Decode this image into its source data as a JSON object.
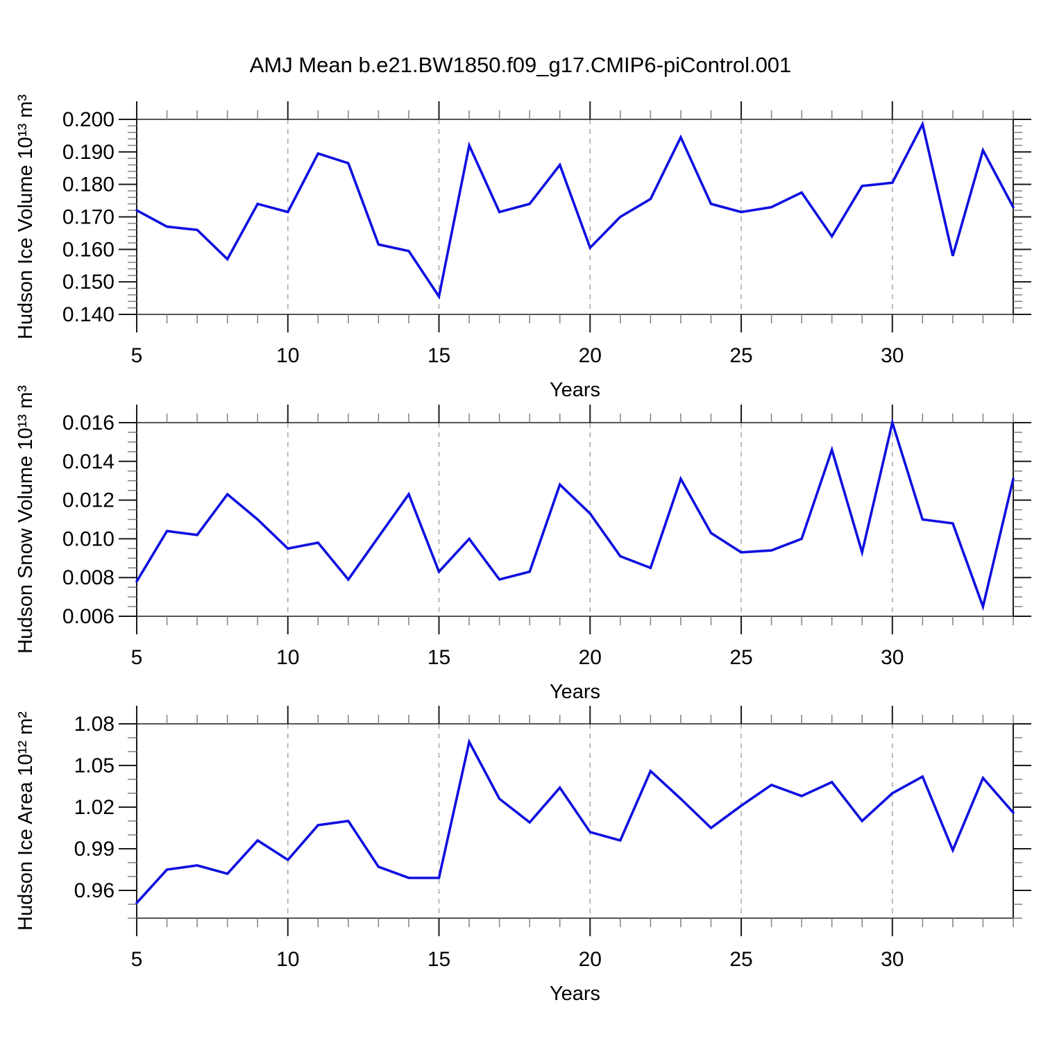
{
  "page_title": "AMJ Mean b.e21.BW1850.f09_g17.CMIP6-piControl.001",
  "colors": {
    "line": "#0f0fe0",
    "axis_dark": "#1a1a1a",
    "frame_gray": "#555555",
    "tick_minor": "#808080",
    "grid": "#999999",
    "text": "#000000"
  },
  "chart_data": [
    {
      "type": "line",
      "ylabel": "Hudson Ice Volume 10¹³ m³",
      "xlabel": "Years",
      "xlim": [
        5,
        34
      ],
      "ylim": [
        0.14,
        0.2
      ],
      "x": [
        5,
        6,
        7,
        8,
        9,
        10,
        11,
        12,
        13,
        14,
        15,
        16,
        17,
        18,
        19,
        20,
        21,
        22,
        23,
        24,
        25,
        26,
        27,
        28,
        29,
        30,
        31,
        32,
        33,
        34
      ],
      "values": [
        0.172,
        0.167,
        0.166,
        0.157,
        0.174,
        0.1715,
        0.1895,
        0.1865,
        0.1615,
        0.1595,
        0.1455,
        0.192,
        0.1715,
        0.174,
        0.186,
        0.1605,
        0.17,
        0.1755,
        0.1945,
        0.174,
        0.1715,
        0.173,
        0.1775,
        0.164,
        0.1795,
        0.1805,
        0.1985,
        0.158,
        0.1905,
        0.173
      ],
      "x_major_ticks": [
        5,
        10,
        15,
        20,
        25,
        30
      ],
      "x_tick_labels": [
        "5",
        "10",
        "15",
        "20",
        "25",
        "30"
      ],
      "x_minor_step": 1,
      "y_major_ticks": [
        0.14,
        0.15,
        0.16,
        0.17,
        0.18,
        0.19,
        0.2
      ],
      "y_tick_labels": [
        "0.140",
        "0.150",
        "0.160",
        "0.170",
        "0.180",
        "0.190",
        "0.200"
      ],
      "y_minor_step": 0.002,
      "grid_x": [
        10,
        15,
        20,
        25,
        30
      ],
      "grid_style": "vertical-dashed",
      "legend": null
    },
    {
      "type": "line",
      "ylabel": "Hudson Snow Volume 10¹³ m³",
      "xlabel": "Years",
      "xlim": [
        5,
        34
      ],
      "ylim": [
        0.006,
        0.016
      ],
      "x": [
        5,
        6,
        7,
        8,
        9,
        10,
        11,
        12,
        13,
        14,
        15,
        16,
        17,
        18,
        19,
        20,
        21,
        22,
        23,
        24,
        25,
        26,
        27,
        28,
        29,
        30,
        31,
        32,
        33,
        34
      ],
      "values": [
        0.0078,
        0.0104,
        0.0102,
        0.0123,
        0.011,
        0.0095,
        0.0098,
        0.0079,
        0.0101,
        0.0123,
        0.0083,
        0.01,
        0.0079,
        0.0083,
        0.0128,
        0.0113,
        0.0091,
        0.0085,
        0.0131,
        0.0103,
        0.0093,
        0.0094,
        0.01,
        0.0146,
        0.0093,
        0.016,
        0.011,
        0.0108,
        0.0065,
        0.0131
      ],
      "x_major_ticks": [
        5,
        10,
        15,
        20,
        25,
        30
      ],
      "x_tick_labels": [
        "5",
        "10",
        "15",
        "20",
        "25",
        "30"
      ],
      "x_minor_step": 1,
      "y_major_ticks": [
        0.006,
        0.008,
        0.01,
        0.012,
        0.014,
        0.016
      ],
      "y_tick_labels": [
        "0.006",
        "0.008",
        "0.010",
        "0.012",
        "0.014",
        "0.016"
      ],
      "y_minor_step": 0.0005,
      "grid_x": [
        10,
        15,
        20,
        25,
        30
      ],
      "grid_style": "vertical-dashed",
      "legend": null
    },
    {
      "type": "line",
      "ylabel": "Hudson Ice Area 10¹² m²",
      "xlabel": "Years",
      "xlim": [
        5,
        34
      ],
      "ylim": [
        0.94,
        1.08
      ],
      "x": [
        5,
        6,
        7,
        8,
        9,
        10,
        11,
        12,
        13,
        14,
        15,
        16,
        17,
        18,
        19,
        20,
        21,
        22,
        23,
        24,
        25,
        26,
        27,
        28,
        29,
        30,
        31,
        32,
        33,
        34
      ],
      "values": [
        0.951,
        0.975,
        0.978,
        0.972,
        0.996,
        0.982,
        1.007,
        1.01,
        0.977,
        0.969,
        0.969,
        1.067,
        1.026,
        1.009,
        1.034,
        1.002,
        0.996,
        1.046,
        1.026,
        1.005,
        1.021,
        1.036,
        1.028,
        1.038,
        1.01,
        1.03,
        1.042,
        0.989,
        1.041,
        1.016
      ],
      "x_major_ticks": [
        5,
        10,
        15,
        20,
        25,
        30
      ],
      "x_tick_labels": [
        "5",
        "10",
        "15",
        "20",
        "25",
        "30"
      ],
      "x_minor_step": 1,
      "y_major_ticks": [
        0.96,
        0.99,
        1.02,
        1.05,
        1.08
      ],
      "y_tick_labels": [
        "0.96",
        "0.99",
        "1.02",
        "1.05",
        "1.08"
      ],
      "y_minor_step": 0.01,
      "grid_x": [
        10,
        15,
        20,
        25,
        30
      ],
      "grid_style": "vertical-dashed",
      "legend": null
    }
  ]
}
